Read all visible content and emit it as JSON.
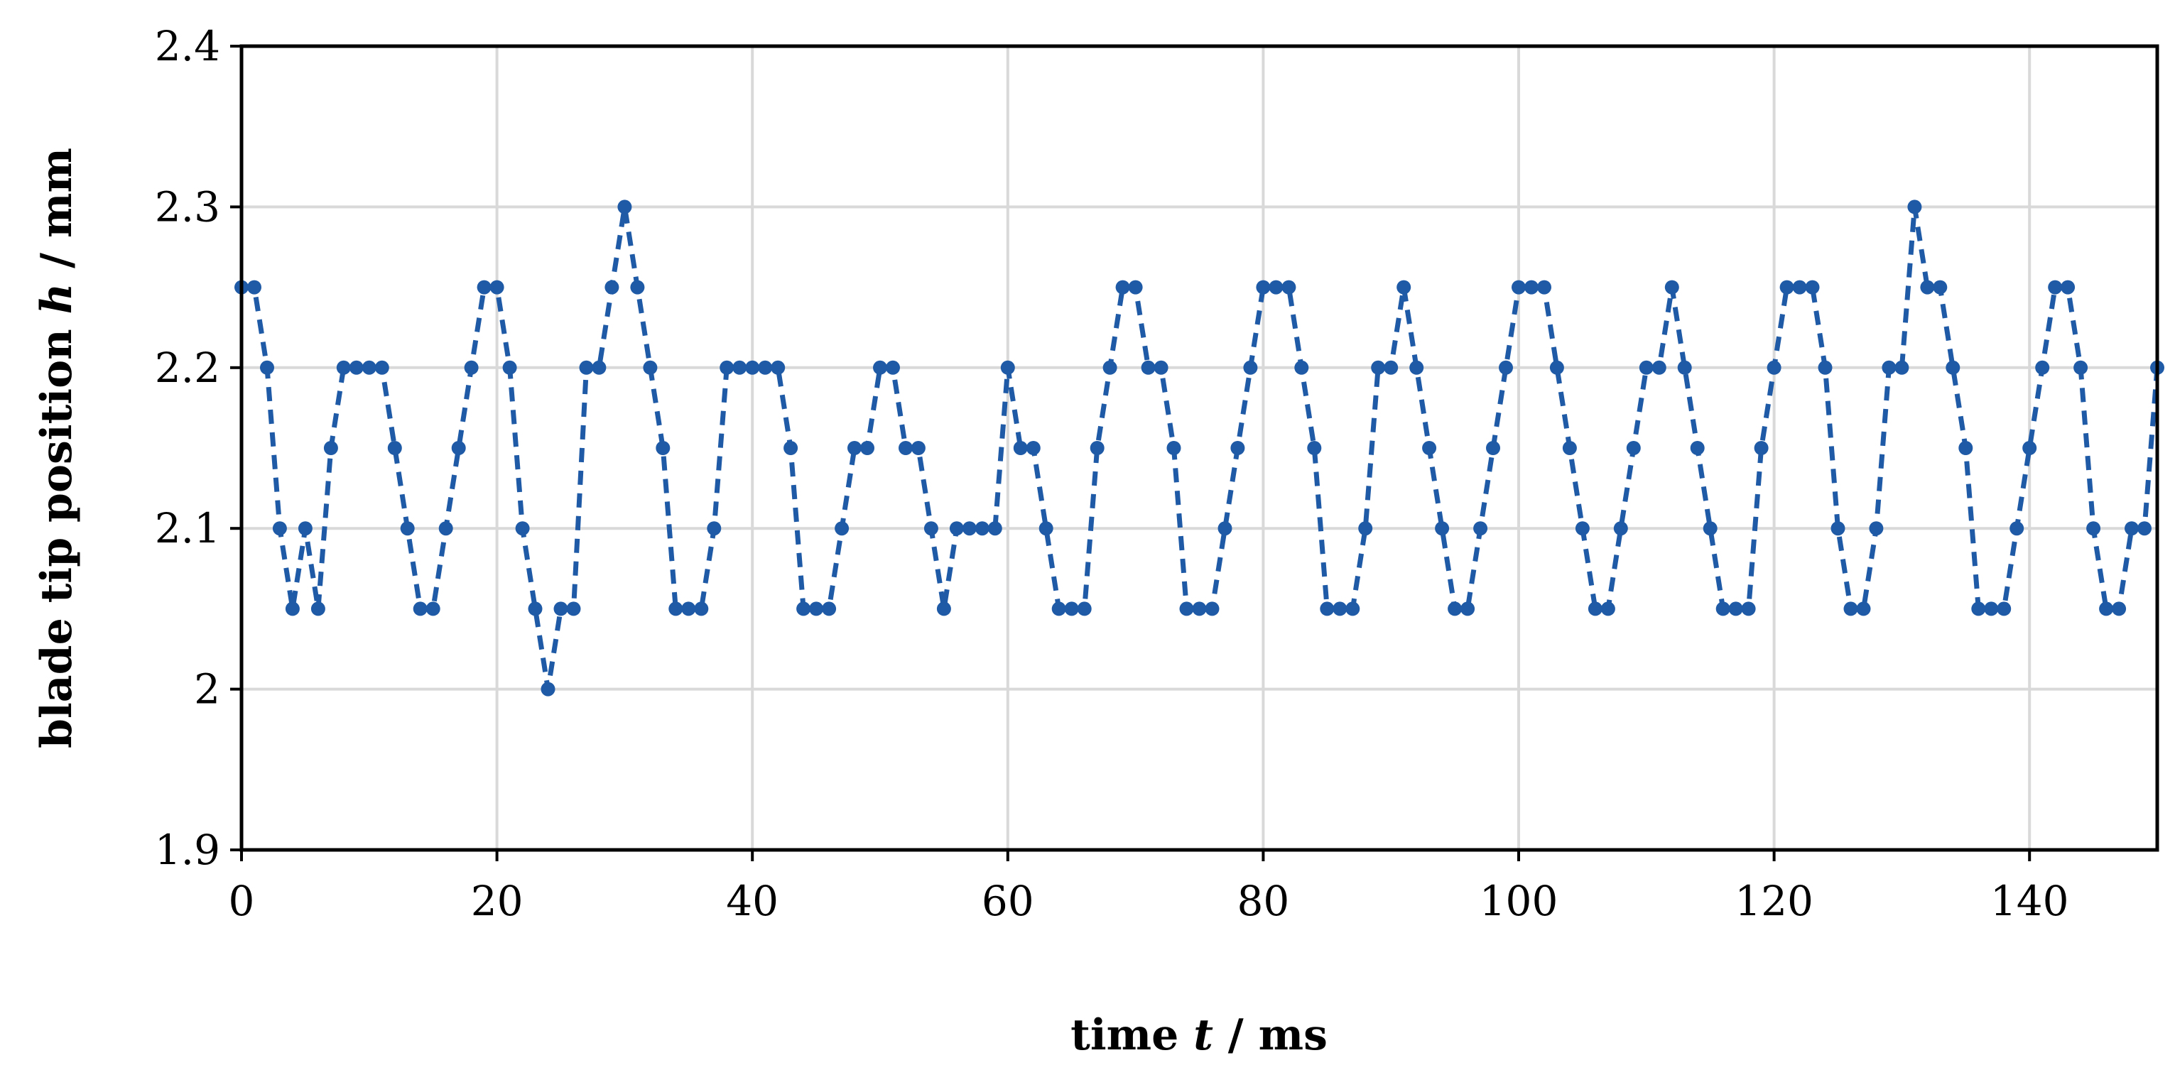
{
  "chart_data": {
    "type": "line",
    "xlabel": {
      "prefix": "time ",
      "variable": "t",
      "suffix": " / ms"
    },
    "ylabel": {
      "prefix": "blade tip position ",
      "variable": "h",
      "suffix": " / mm"
    },
    "xlim": [
      0,
      150
    ],
    "ylim": [
      1.9,
      2.4
    ],
    "x_ticks": [
      "0",
      "20",
      "40",
      "60",
      "80",
      "100",
      "120",
      "140"
    ],
    "x_tick_values": [
      0,
      20,
      40,
      60,
      80,
      100,
      120,
      140
    ],
    "y_ticks": [
      "1.9",
      "2",
      "2.1",
      "2.2",
      "2.3",
      "2.4"
    ],
    "y_tick_values": [
      1.9,
      2.0,
      2.1,
      2.2,
      2.3,
      2.4
    ],
    "grid": true,
    "legend": "none",
    "series": [
      {
        "color": "#1f5aa6",
        "line_style": "dashed",
        "marker": "circle",
        "x": [
          0,
          1,
          2,
          3,
          4,
          5,
          6,
          7,
          8,
          9,
          10,
          11,
          12,
          13,
          14,
          15,
          16,
          17,
          18,
          19,
          20,
          21,
          22,
          23,
          24,
          25,
          26,
          27,
          28,
          29,
          30,
          31,
          32,
          33,
          34,
          35,
          36,
          37,
          38,
          39,
          40,
          41,
          42,
          43,
          44,
          45,
          46,
          47,
          48,
          49,
          50,
          51,
          52,
          53,
          54,
          55,
          56,
          57,
          58,
          59,
          60,
          61,
          62,
          63,
          64,
          65,
          66,
          67,
          68,
          69,
          70,
          71,
          72,
          73,
          74,
          75,
          76,
          77,
          78,
          79,
          80,
          81,
          82,
          83,
          84,
          85,
          86,
          87,
          88,
          89,
          90,
          91,
          92,
          93,
          94,
          95,
          96,
          97,
          98,
          99,
          100,
          101,
          102,
          103,
          104,
          105,
          106,
          107,
          108,
          109,
          110,
          111,
          112,
          113,
          114,
          115,
          116,
          117,
          118,
          119,
          120,
          121,
          122,
          123,
          124,
          125,
          126,
          127,
          128,
          129,
          130,
          131,
          132,
          133,
          134,
          135,
          136,
          137,
          138,
          139,
          140,
          141,
          142,
          143,
          144,
          145,
          146,
          147,
          148,
          149,
          150
        ],
        "y": [
          2.25,
          2.25,
          2.2,
          2.1,
          2.05,
          2.1,
          2.05,
          2.15,
          2.2,
          2.2,
          2.2,
          2.2,
          2.15,
          2.1,
          2.05,
          2.05,
          2.1,
          2.15,
          2.2,
          2.25,
          2.25,
          2.2,
          2.1,
          2.05,
          2.0,
          2.05,
          2.05,
          2.2,
          2.2,
          2.25,
          2.3,
          2.25,
          2.2,
          2.15,
          2.05,
          2.05,
          2.05,
          2.1,
          2.2,
          2.2,
          2.2,
          2.2,
          2.2,
          2.15,
          2.05,
          2.05,
          2.05,
          2.1,
          2.15,
          2.15,
          2.2,
          2.2,
          2.15,
          2.15,
          2.1,
          2.05,
          2.1,
          2.1,
          2.1,
          2.1,
          2.2,
          2.15,
          2.15,
          2.1,
          2.05,
          2.05,
          2.05,
          2.15,
          2.2,
          2.25,
          2.25,
          2.2,
          2.2,
          2.15,
          2.05,
          2.05,
          2.05,
          2.1,
          2.15,
          2.2,
          2.25,
          2.25,
          2.25,
          2.2,
          2.15,
          2.05,
          2.05,
          2.05,
          2.1,
          2.2,
          2.2,
          2.25,
          2.2,
          2.15,
          2.1,
          2.05,
          2.05,
          2.1,
          2.15,
          2.2,
          2.25,
          2.25,
          2.25,
          2.2,
          2.15,
          2.1,
          2.05,
          2.05,
          2.1,
          2.15,
          2.2,
          2.2,
          2.25,
          2.2,
          2.15,
          2.1,
          2.05,
          2.05,
          2.05,
          2.15,
          2.2,
          2.25,
          2.25,
          2.25,
          2.2,
          2.1,
          2.05,
          2.05,
          2.1,
          2.2,
          2.2,
          2.3,
          2.25,
          2.25,
          2.2,
          2.15,
          2.05,
          2.05,
          2.05,
          2.1,
          2.15,
          2.2,
          2.25,
          2.25,
          2.2,
          2.1,
          2.05,
          2.05,
          2.1,
          2.1,
          2.2
        ]
      }
    ]
  }
}
